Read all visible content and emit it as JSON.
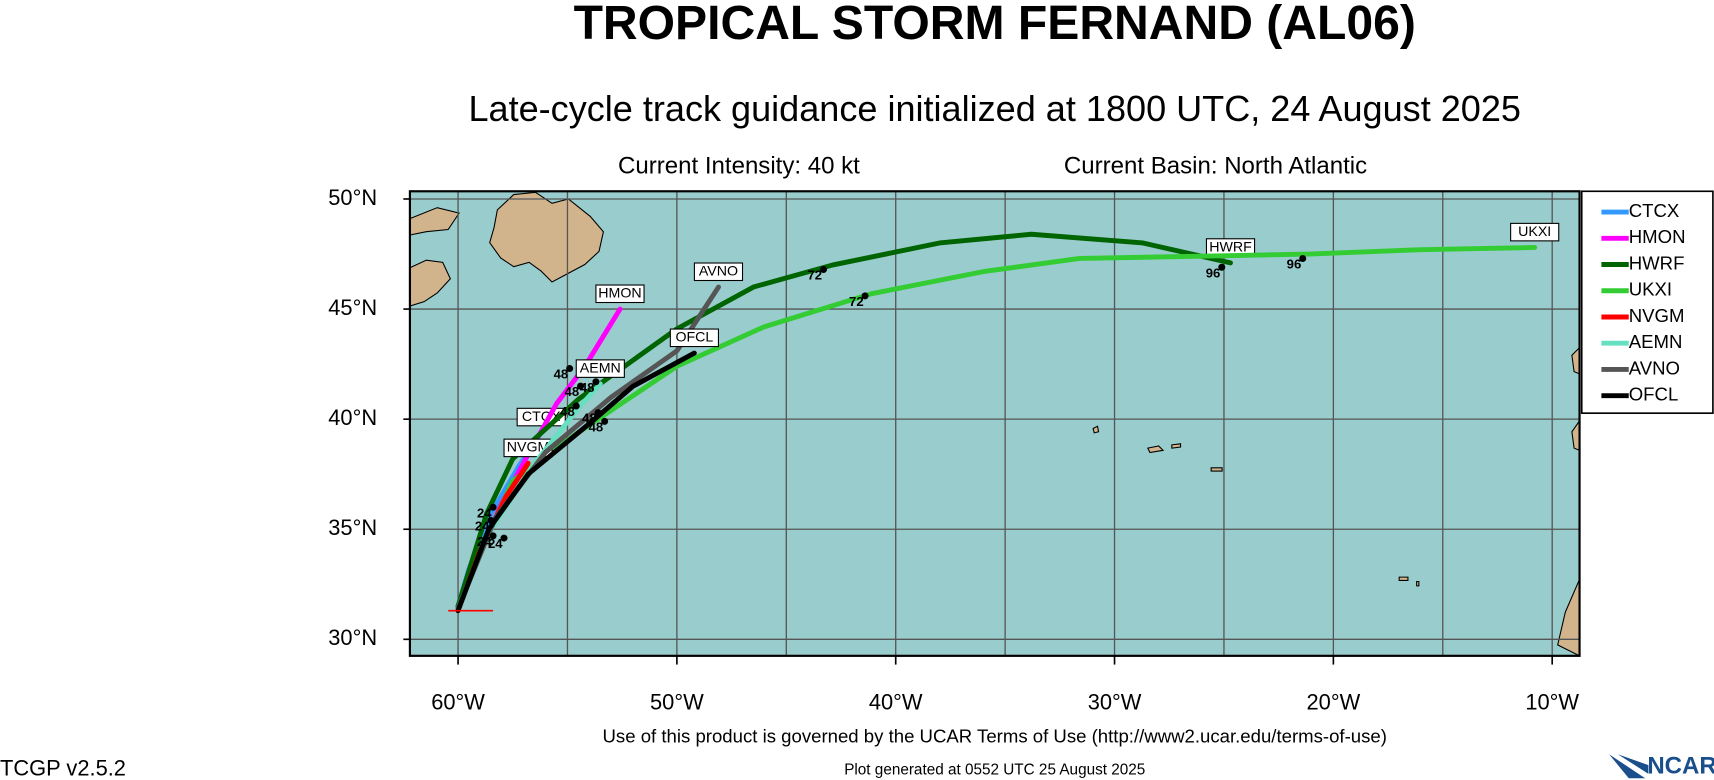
{
  "chart_data": {
    "type": "track-map",
    "title": "TROPICAL STORM FERNAND (AL06)",
    "subtitle": "Late-cycle track guidance initialized at 1800 UTC, 24 August 2025",
    "info_left": "Current Intensity: 40 kt",
    "info_right": "Current Basin: North Atlantic",
    "footer": "Use of this product is governed by the UCAR Terms of Use (http://www2.ucar.edu/terms-of-use)",
    "version": "TCGP v2.5.2",
    "generated": "Plot generated at 0552 UTC   25 August 2025",
    "logo": "NCAR",
    "xlim": [
      -62.2,
      -8.75
    ],
    "ylim": [
      29.25,
      50.35
    ],
    "xticks": [
      {
        "value": -60,
        "label": "60°W"
      },
      {
        "value": -50,
        "label": "50°W"
      },
      {
        "value": -40,
        "label": "40°W"
      },
      {
        "value": -30,
        "label": "30°W"
      },
      {
        "value": -20,
        "label": "20°W"
      },
      {
        "value": -10,
        "label": "10°W"
      }
    ],
    "yticks": [
      {
        "value": 30,
        "label": "30°N"
      },
      {
        "value": 35,
        "label": "35°N"
      },
      {
        "value": 40,
        "label": "40°N"
      },
      {
        "value": 45,
        "label": "45°N"
      },
      {
        "value": 50,
        "label": "50°N"
      }
    ],
    "grid_spacing": 5,
    "ocean_color": "#99cccc",
    "land_color": "#d2b48c",
    "legend": "outside-right",
    "series": [
      {
        "name": "CTCX",
        "color": "#3399ff",
        "x": [
          -60,
          -59.5,
          -58.5,
          -57.2,
          -56.2
        ],
        "values": [
          31.5,
          33.2,
          35.7,
          37.9,
          39.4
        ]
      },
      {
        "name": "HMON",
        "color": "#ff00ff",
        "x": [
          -60,
          -58.9,
          -58,
          -56.9,
          -55.5,
          -54.2,
          -52.6
        ],
        "values": [
          31.5,
          34.2,
          36.2,
          38.2,
          40.7,
          42.4,
          45
        ]
      },
      {
        "name": "HWRF",
        "color": "#006400",
        "x": [
          -60,
          -58.7,
          -57.5,
          -54.5,
          -50,
          -46.5,
          -42.9,
          -38,
          -33.8,
          -28.7,
          -24.7
        ],
        "values": [
          31.5,
          35.7,
          38.2,
          40.9,
          44.1,
          46,
          47,
          48,
          48.4,
          48,
          47.1
        ]
      },
      {
        "name": "UKXI",
        "color": "#33cc33",
        "x": [
          -60,
          -58.9,
          -57.5,
          -54.5,
          -50,
          -46,
          -41.1,
          -36,
          -31.6,
          -26,
          -21.1,
          -16,
          -10.8
        ],
        "values": [
          31.3,
          34.2,
          37.2,
          39.4,
          42.4,
          44.2,
          45.7,
          46.7,
          47.3,
          47.4,
          47.5,
          47.7,
          47.8
        ]
      },
      {
        "name": "NVGM",
        "color": "#ff0000",
        "x": [
          -60,
          -59,
          -57.8,
          -56.8
        ],
        "values": [
          31.3,
          34,
          36.5,
          38
        ]
      },
      {
        "name": "AEMN",
        "color": "#66e0c0",
        "x": [
          -60,
          -58.5,
          -56.5,
          -54.5,
          -53.5
        ],
        "values": [
          31.4,
          35,
          38,
          40.5,
          41.6
        ]
      },
      {
        "name": "AVNO",
        "color": "#555555",
        "x": [
          -60,
          -58.3,
          -56,
          -53,
          -50,
          -48.1
        ],
        "values": [
          31.4,
          35.5,
          38.5,
          41,
          43.1,
          46
        ]
      },
      {
        "name": "OFCL",
        "color": "#000000",
        "x": [
          -60,
          -58.6,
          -56.8,
          -54,
          -52,
          -49.2
        ],
        "values": [
          31.3,
          35,
          37.5,
          39.8,
          41.5,
          43
        ]
      }
    ],
    "hour_labels": [
      {
        "text": "72",
        "x": -43.7,
        "y": 46.6
      },
      {
        "text": "72",
        "x": -41.8,
        "y": 45.4
      },
      {
        "text": "96",
        "x": -25.5,
        "y": 46.7
      },
      {
        "text": "96",
        "x": -21.8,
        "y": 47.1
      },
      {
        "text": "48",
        "x": -55.3,
        "y": 42.1
      },
      {
        "text": "48",
        "x": -54.8,
        "y": 41.3
      },
      {
        "text": "48",
        "x": -54.1,
        "y": 41.5
      },
      {
        "text": "48",
        "x": -55,
        "y": 40.4
      },
      {
        "text": "48",
        "x": -54,
        "y": 40.1
      },
      {
        "text": "48",
        "x": -53.7,
        "y": 39.7
      },
      {
        "text": "24",
        "x": -58.8,
        "y": 35.8
      },
      {
        "text": "24",
        "x": -58.9,
        "y": 35.2
      },
      {
        "text": "24",
        "x": -58.8,
        "y": 34.5
      },
      {
        "text": "24",
        "x": -58.3,
        "y": 34.4
      }
    ]
  }
}
